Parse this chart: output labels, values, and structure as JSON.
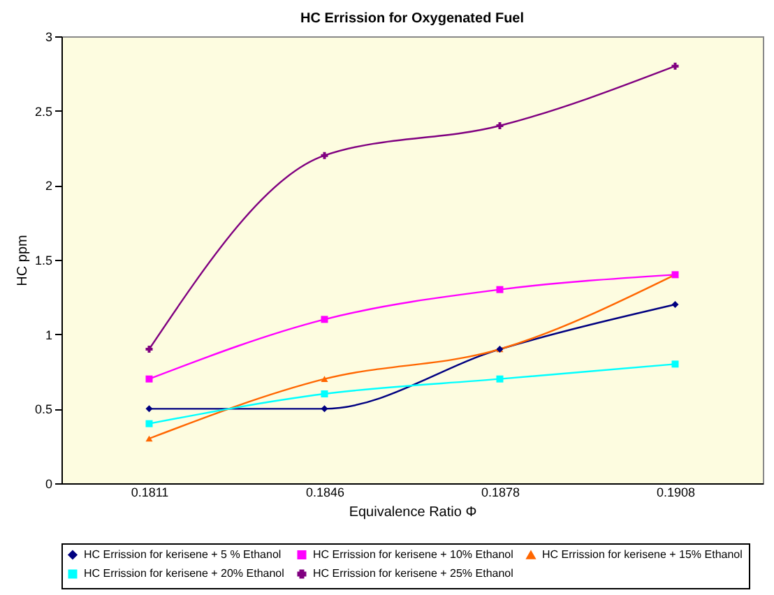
{
  "chart_data": {
    "type": "line",
    "title": "HC Errission for Oxygenated Fuel",
    "xlabel": "Equivalence Ratio Φ",
    "ylabel": "HC ppm",
    "categories": [
      "0.1811",
      "0.1846",
      "0.1878",
      "0.1908"
    ],
    "series": [
      {
        "name": "HC Errission for kerisene + 5 % Ethanol",
        "color": "#000080",
        "marker": "diamond",
        "values": [
          0.5,
          0.5,
          0.9,
          1.2
        ]
      },
      {
        "name": "HC Errission for kerisene + 10% Ethanol",
        "color": "#ff00ff",
        "marker": "square",
        "values": [
          0.7,
          1.1,
          1.3,
          1.4
        ]
      },
      {
        "name": "HC Errission for kerisene + 15% Ethanol",
        "color": "#ff6600",
        "marker": "triangle",
        "values": [
          0.3,
          0.7,
          0.9,
          1.4
        ]
      },
      {
        "name": "HC Errission for kerisene + 20% Ethanol",
        "color": "#00ffff",
        "marker": "square",
        "values": [
          0.4,
          0.6,
          0.7,
          0.8
        ]
      },
      {
        "name": "HC Errission for kerisene + 25% Ethanol",
        "color": "#800080",
        "marker": "cross",
        "values": [
          0.9,
          2.2,
          2.4,
          2.8
        ]
      }
    ],
    "ylim": [
      0,
      3
    ],
    "yticks": [
      0,
      0.5,
      1,
      1.5,
      2,
      2.5,
      3
    ],
    "grid": false,
    "legend": "bottom"
  }
}
